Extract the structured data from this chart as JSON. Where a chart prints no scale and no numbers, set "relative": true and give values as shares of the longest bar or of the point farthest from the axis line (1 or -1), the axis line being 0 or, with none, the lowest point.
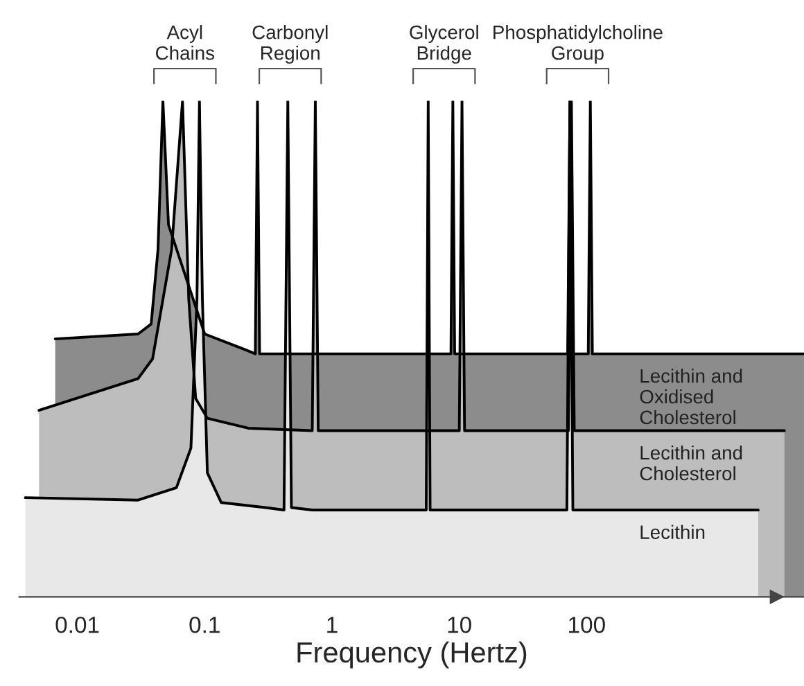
{
  "chart_data": {
    "type": "area",
    "relative": true,
    "log": "x",
    "xlabel": "Frequency (Hertz)",
    "xlim": [
      0.0035,
      5100
    ],
    "xticks": [
      0.01,
      0.1,
      1,
      10,
      100
    ],
    "grid": false,
    "legend": false,
    "annotations": [
      "Acyl\nChains",
      "Carbonyl\nRegion",
      "Glycerol\nBridge",
      "Phosphatidylcholine\nGroup"
    ],
    "series": [
      {
        "name": "Lecithin and\nOxidised\nCholesterol",
        "color": "#8c8c8c",
        "x": [
          0.0067,
          0.03,
          0.038,
          0.043,
          0.047,
          0.052,
          0.1,
          0.2,
          0.25,
          0.26,
          0.27,
          8.6,
          8.9,
          9.2,
          71,
          74,
          77,
          103,
          107,
          111,
          5100
        ],
        "values": [
          0.52,
          0.53,
          0.55,
          0.7,
          1,
          0.75,
          0.53,
          0.5,
          0.49,
          1,
          0.49,
          0.49,
          1,
          0.49,
          0.49,
          1,
          0.49,
          0.49,
          1,
          0.49,
          0.49
        ]
      },
      {
        "name": "Lecithin and\nCholesterol",
        "color": "#bdbdbd",
        "x": [
          0.005,
          0.03,
          0.039,
          0.055,
          0.067,
          0.075,
          0.085,
          0.105,
          0.22,
          0.7,
          0.74,
          0.78,
          10,
          10.5,
          11,
          72,
          76,
          80,
          3580
        ],
        "values": [
          0.376,
          0.44,
          0.48,
          0.7,
          1,
          0.6,
          0.4,
          0.36,
          0.34,
          0.335,
          1,
          0.335,
          0.335,
          1,
          0.335,
          0.335,
          1,
          0.335,
          0.335
        ]
      },
      {
        "name": "Lecithin",
        "color": "#e8e8e8",
        "x": [
          0.0039,
          0.03,
          0.06,
          0.078,
          0.087,
          0.091,
          0.096,
          0.105,
          0.135,
          0.3,
          0.42,
          0.45,
          0.48,
          0.7,
          5.5,
          5.7,
          5.9,
          70,
          74,
          78,
          2230
        ],
        "values": [
          0.2,
          0.195,
          0.22,
          0.3,
          0.6,
          1,
          0.6,
          0.25,
          0.19,
          0.18,
          0.175,
          1,
          0.18,
          0.175,
          0.175,
          1,
          0.175,
          0.175,
          1,
          0.175,
          0.175
        ]
      }
    ]
  }
}
